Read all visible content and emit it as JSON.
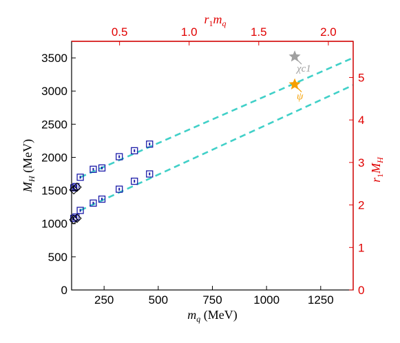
{
  "chart_data": {
    "type": "scatter",
    "xlabel": {
      "main": "m",
      "sub": "q",
      "unit": " (MeV)"
    },
    "ylabel": {
      "main": "M",
      "sub": "H",
      "unit": " (MeV)"
    },
    "x2label": {
      "pre": "r",
      "pre_sub": "1",
      "main": "m",
      "sub": "q"
    },
    "y2label": {
      "pre": "r",
      "pre_sub": "1",
      "main": "M",
      "sub": "H"
    },
    "xlim": [
      100,
      1400
    ],
    "ylim": [
      0,
      3750
    ],
    "y2lim": [
      0,
      5.85
    ],
    "x2_per_x": 0.001556,
    "xticks": [
      250,
      500,
      750,
      1000,
      1250
    ],
    "yticks": [
      0,
      500,
      1000,
      1500,
      2000,
      2500,
      3000,
      3500
    ],
    "x2ticks": [
      "0.5",
      "1.0",
      "1.5",
      "2.0"
    ],
    "y2ticks": [
      "0",
      "1",
      "2",
      "3",
      "4",
      "5"
    ],
    "colors": {
      "primary_axes": "#000000",
      "secondary_axes": "#e00000",
      "data": "#1a1aa8",
      "fit": "#40d0c8",
      "chi_c1": "#a0a0a0",
      "psi": "#f5a000"
    },
    "series": [
      {
        "marker": "square-dot",
        "x": [
          140,
          200,
          240,
          320,
          390,
          460
        ],
        "y": [
          1700,
          1820,
          1840,
          2010,
          2100,
          2200
        ]
      },
      {
        "marker": "square-dot",
        "x": [
          140,
          200,
          240,
          320,
          390,
          460
        ],
        "y": [
          1200,
          1310,
          1370,
          1520,
          1640,
          1750
        ]
      },
      {
        "marker": "square-dot",
        "x": [
          110,
          120
        ],
        "y": [
          1540,
          1560
        ]
      },
      {
        "marker": "square-dot",
        "x": [
          110,
          120
        ],
        "y": [
          1080,
          1100
        ]
      },
      {
        "marker": "diamond",
        "x": [
          110,
          125,
          110,
          125
        ],
        "y": [
          1510,
          1550,
          1060,
          1080
        ]
      }
    ],
    "fits": [
      {
        "x0": 140,
        "x1": 1400,
        "slope": 1.43,
        "intercept": 1700
      },
      {
        "x0": 140,
        "x1": 1400,
        "slope": 1.5,
        "intercept": 1200
      }
    ],
    "annotations": [
      {
        "label": "χc1",
        "x": 1130,
        "y": 3520,
        "marker": "star",
        "color": "chi_c1"
      },
      {
        "label": "ψ",
        "x": 1130,
        "y": 3100,
        "marker": "star",
        "color": "psi"
      }
    ]
  }
}
